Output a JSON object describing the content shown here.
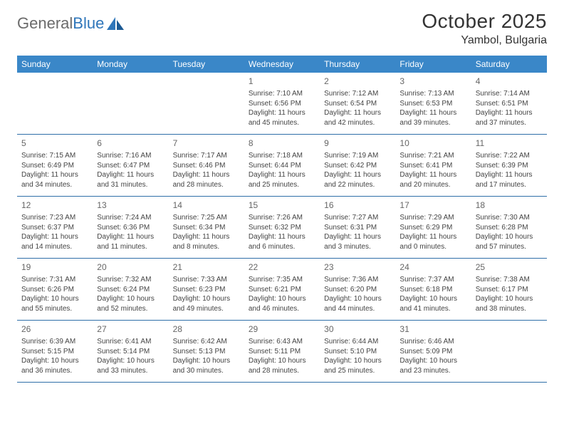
{
  "logo": {
    "text_gray": "General",
    "text_blue": "Blue"
  },
  "header": {
    "month_title": "October 2025",
    "location": "Yambol, Bulgaria"
  },
  "colors": {
    "header_bg": "#3a87c8",
    "header_text": "#ffffff",
    "rule": "#2f6fa8",
    "body_text": "#444444",
    "daynum": "#666666",
    "logo_gray": "#6b6b6b",
    "logo_blue": "#2f76ba"
  },
  "weekdays": [
    "Sunday",
    "Monday",
    "Tuesday",
    "Wednesday",
    "Thursday",
    "Friday",
    "Saturday"
  ],
  "weeks": [
    [
      null,
      null,
      null,
      {
        "n": "1",
        "sunrise": "7:10 AM",
        "sunset": "6:56 PM",
        "day_h": "11",
        "day_m": "45"
      },
      {
        "n": "2",
        "sunrise": "7:12 AM",
        "sunset": "6:54 PM",
        "day_h": "11",
        "day_m": "42"
      },
      {
        "n": "3",
        "sunrise": "7:13 AM",
        "sunset": "6:53 PM",
        "day_h": "11",
        "day_m": "39"
      },
      {
        "n": "4",
        "sunrise": "7:14 AM",
        "sunset": "6:51 PM",
        "day_h": "11",
        "day_m": "37"
      }
    ],
    [
      {
        "n": "5",
        "sunrise": "7:15 AM",
        "sunset": "6:49 PM",
        "day_h": "11",
        "day_m": "34"
      },
      {
        "n": "6",
        "sunrise": "7:16 AM",
        "sunset": "6:47 PM",
        "day_h": "11",
        "day_m": "31"
      },
      {
        "n": "7",
        "sunrise": "7:17 AM",
        "sunset": "6:46 PM",
        "day_h": "11",
        "day_m": "28"
      },
      {
        "n": "8",
        "sunrise": "7:18 AM",
        "sunset": "6:44 PM",
        "day_h": "11",
        "day_m": "25"
      },
      {
        "n": "9",
        "sunrise": "7:19 AM",
        "sunset": "6:42 PM",
        "day_h": "11",
        "day_m": "22"
      },
      {
        "n": "10",
        "sunrise": "7:21 AM",
        "sunset": "6:41 PM",
        "day_h": "11",
        "day_m": "20"
      },
      {
        "n": "11",
        "sunrise": "7:22 AM",
        "sunset": "6:39 PM",
        "day_h": "11",
        "day_m": "17"
      }
    ],
    [
      {
        "n": "12",
        "sunrise": "7:23 AM",
        "sunset": "6:37 PM",
        "day_h": "11",
        "day_m": "14"
      },
      {
        "n": "13",
        "sunrise": "7:24 AM",
        "sunset": "6:36 PM",
        "day_h": "11",
        "day_m": "11"
      },
      {
        "n": "14",
        "sunrise": "7:25 AM",
        "sunset": "6:34 PM",
        "day_h": "11",
        "day_m": "8"
      },
      {
        "n": "15",
        "sunrise": "7:26 AM",
        "sunset": "6:32 PM",
        "day_h": "11",
        "day_m": "6"
      },
      {
        "n": "16",
        "sunrise": "7:27 AM",
        "sunset": "6:31 PM",
        "day_h": "11",
        "day_m": "3"
      },
      {
        "n": "17",
        "sunrise": "7:29 AM",
        "sunset": "6:29 PM",
        "day_h": "11",
        "day_m": "0"
      },
      {
        "n": "18",
        "sunrise": "7:30 AM",
        "sunset": "6:28 PM",
        "day_h": "10",
        "day_m": "57"
      }
    ],
    [
      {
        "n": "19",
        "sunrise": "7:31 AM",
        "sunset": "6:26 PM",
        "day_h": "10",
        "day_m": "55"
      },
      {
        "n": "20",
        "sunrise": "7:32 AM",
        "sunset": "6:24 PM",
        "day_h": "10",
        "day_m": "52"
      },
      {
        "n": "21",
        "sunrise": "7:33 AM",
        "sunset": "6:23 PM",
        "day_h": "10",
        "day_m": "49"
      },
      {
        "n": "22",
        "sunrise": "7:35 AM",
        "sunset": "6:21 PM",
        "day_h": "10",
        "day_m": "46"
      },
      {
        "n": "23",
        "sunrise": "7:36 AM",
        "sunset": "6:20 PM",
        "day_h": "10",
        "day_m": "44"
      },
      {
        "n": "24",
        "sunrise": "7:37 AM",
        "sunset": "6:18 PM",
        "day_h": "10",
        "day_m": "41"
      },
      {
        "n": "25",
        "sunrise": "7:38 AM",
        "sunset": "6:17 PM",
        "day_h": "10",
        "day_m": "38"
      }
    ],
    [
      {
        "n": "26",
        "sunrise": "6:39 AM",
        "sunset": "5:15 PM",
        "day_h": "10",
        "day_m": "36"
      },
      {
        "n": "27",
        "sunrise": "6:41 AM",
        "sunset": "5:14 PM",
        "day_h": "10",
        "day_m": "33"
      },
      {
        "n": "28",
        "sunrise": "6:42 AM",
        "sunset": "5:13 PM",
        "day_h": "10",
        "day_m": "30"
      },
      {
        "n": "29",
        "sunrise": "6:43 AM",
        "sunset": "5:11 PM",
        "day_h": "10",
        "day_m": "28"
      },
      {
        "n": "30",
        "sunrise": "6:44 AM",
        "sunset": "5:10 PM",
        "day_h": "10",
        "day_m": "25"
      },
      {
        "n": "31",
        "sunrise": "6:46 AM",
        "sunset": "5:09 PM",
        "day_h": "10",
        "day_m": "23"
      },
      null
    ]
  ],
  "labels": {
    "sunrise_prefix": "Sunrise: ",
    "sunset_prefix": "Sunset: ",
    "daylight_prefix": "Daylight: ",
    "hours_word": " hours",
    "and_word": "and ",
    "minutes_word": " minutes."
  }
}
